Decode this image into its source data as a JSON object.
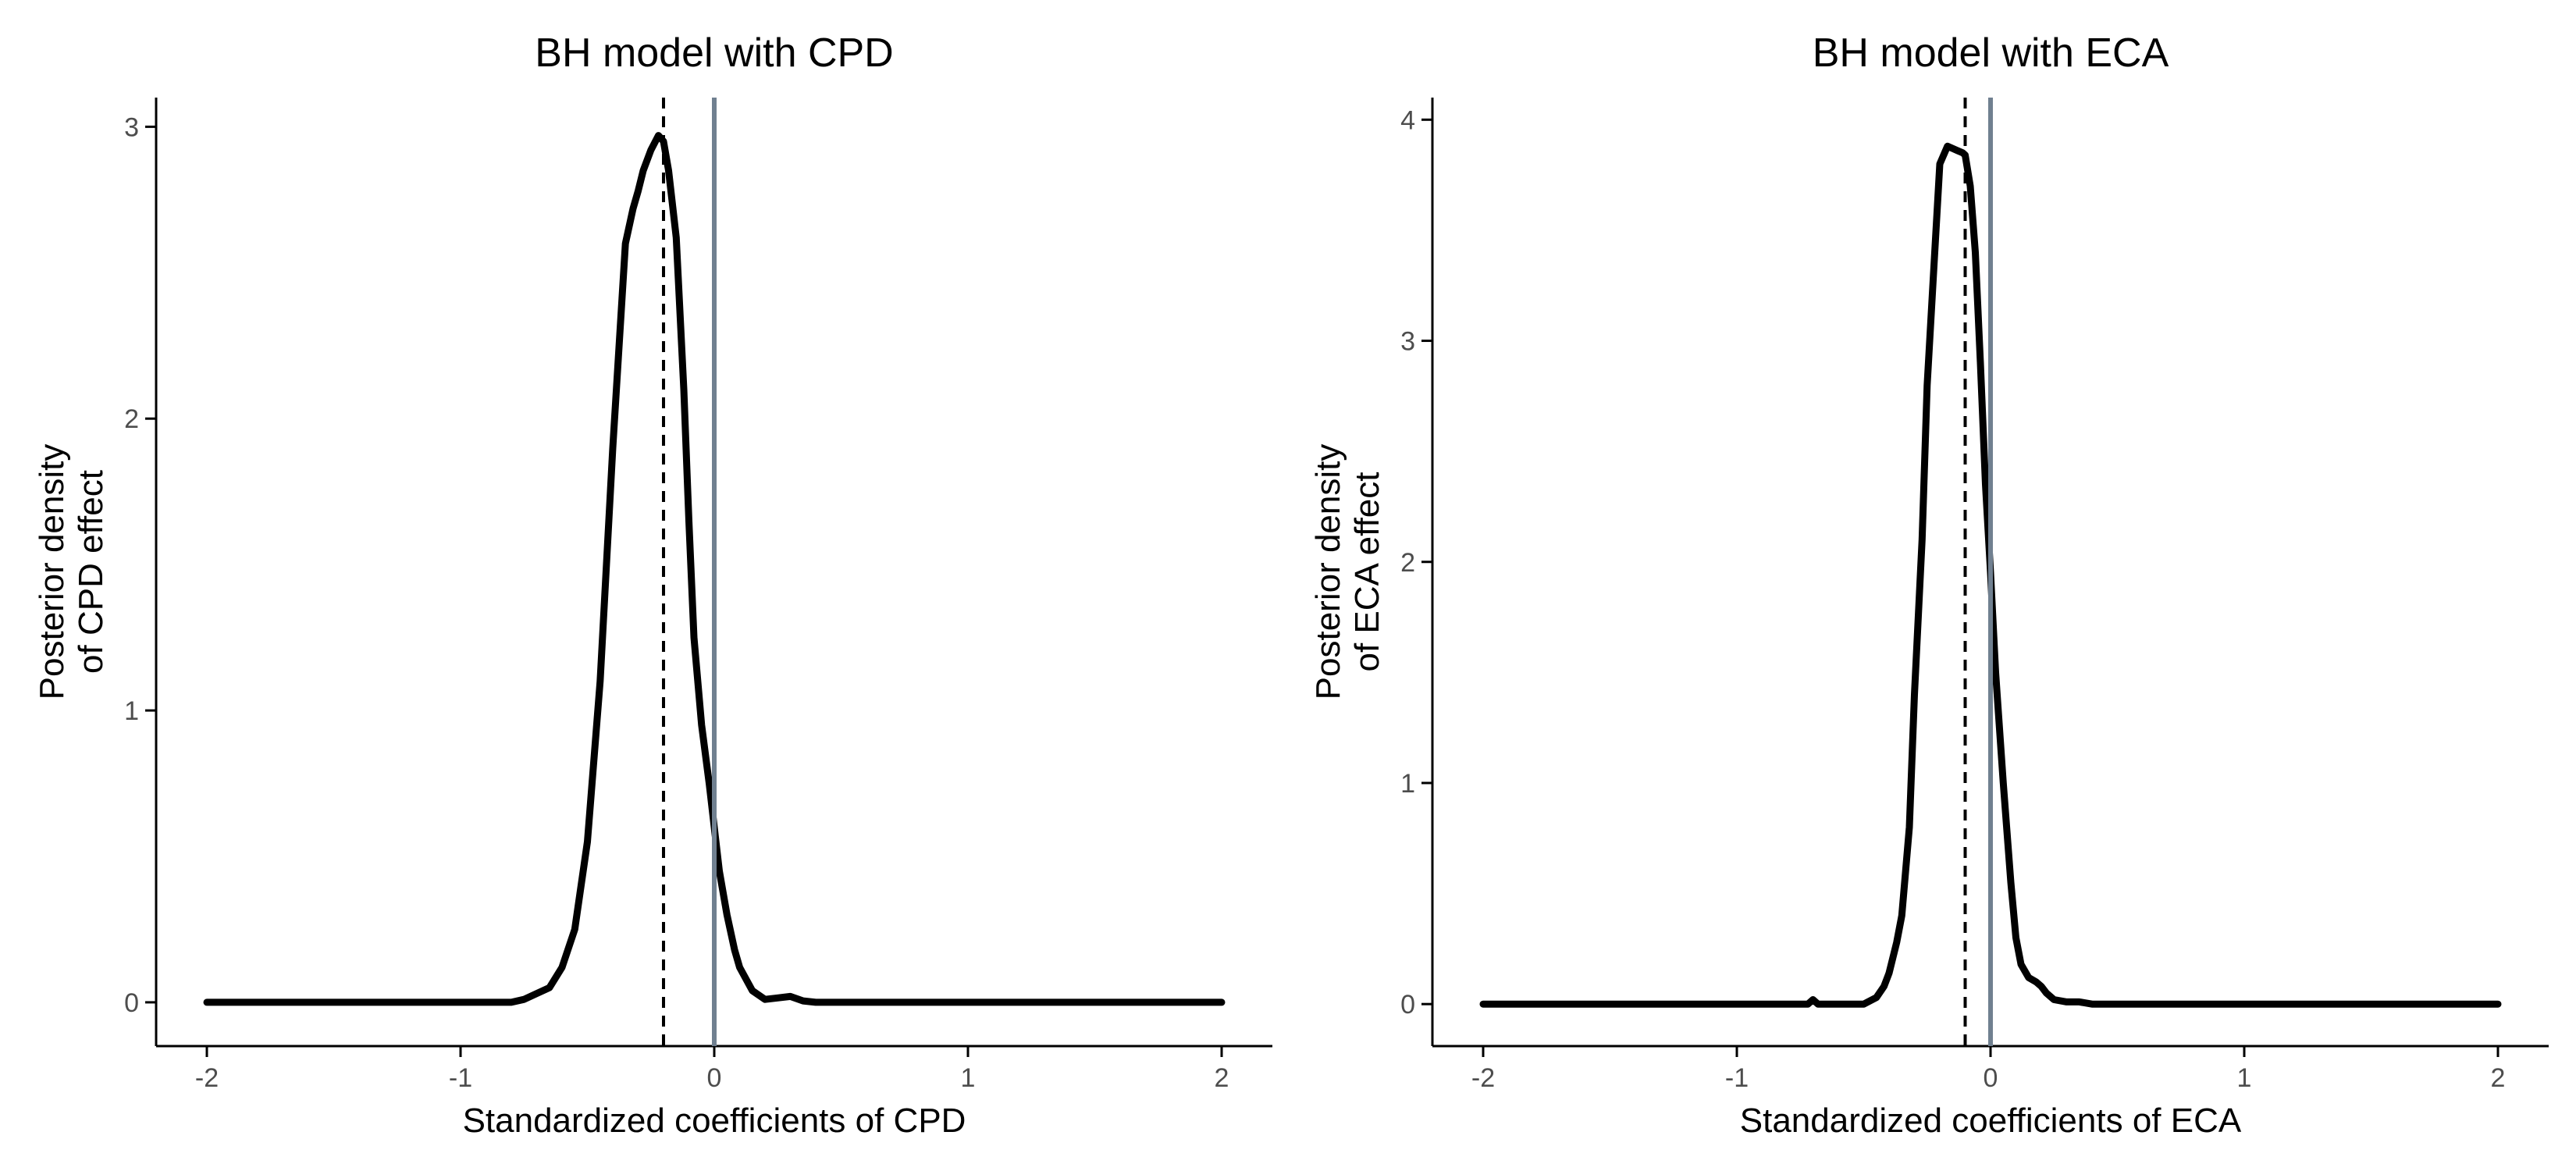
{
  "colors": {
    "density": "#000000",
    "zero_line": "#708090",
    "mean_line": "#000000",
    "axis": "#000000",
    "background": "#ffffff"
  },
  "chart_data": [
    {
      "type": "line",
      "title": "BH model with CPD",
      "xlabel": "Standardized coefficients of CPD",
      "ylabel_lines": [
        "Posterior density",
        "of CPD effect"
      ],
      "xlim": [
        -2.2,
        2.2
      ],
      "ylim": [
        -0.15,
        3.1
      ],
      "xticks": [
        -2,
        -1,
        0,
        1,
        2
      ],
      "xtick_labels": [
        "-2",
        "-1",
        "0",
        "1",
        "2"
      ],
      "yticks": [
        0,
        1,
        2,
        3
      ],
      "ytick_labels": [
        "0",
        "1",
        "2",
        "3"
      ],
      "reference_lines": [
        {
          "x": 0,
          "style": "solid",
          "color": "#708090"
        },
        {
          "x": -0.2,
          "style": "dashed",
          "color": "#000000"
        }
      ],
      "series": [
        {
          "x": [
            -2.0,
            -0.8,
            -0.75,
            -0.7,
            -0.65,
            -0.6,
            -0.55,
            -0.5,
            -0.45,
            -0.4,
            -0.35,
            -0.32,
            -0.3,
            -0.28,
            -0.25,
            -0.22,
            -0.2,
            -0.18,
            -0.15,
            -0.12,
            -0.1,
            -0.08,
            -0.05,
            -0.02,
            0.0,
            0.02,
            0.05,
            0.08,
            0.1,
            0.15,
            0.2,
            0.25,
            0.3,
            0.35,
            0.4,
            2.0
          ],
          "y": [
            0,
            0,
            0.01,
            0.03,
            0.05,
            0.12,
            0.25,
            0.55,
            1.1,
            1.9,
            2.6,
            2.72,
            2.78,
            2.85,
            2.92,
            2.97,
            2.95,
            2.85,
            2.62,
            2.1,
            1.65,
            1.25,
            0.95,
            0.75,
            0.6,
            0.45,
            0.3,
            0.18,
            0.12,
            0.04,
            0.01,
            0.015,
            0.02,
            0.005,
            0,
            0
          ]
        }
      ]
    },
    {
      "type": "line",
      "title": "BH model with ECA",
      "xlabel": "Standardized coefficients of ECA",
      "ylabel_lines": [
        "Posterior density",
        "of ECA effect"
      ],
      "xlim": [
        -2.2,
        2.2
      ],
      "ylim": [
        -0.19,
        4.1
      ],
      "xticks": [
        -2,
        -1,
        0,
        1,
        2
      ],
      "xtick_labels": [
        "-2",
        "-1",
        "0",
        "1",
        "2"
      ],
      "yticks": [
        0,
        1,
        2,
        3,
        4
      ],
      "ytick_labels": [
        "0",
        "1",
        "2",
        "3",
        "4"
      ],
      "reference_lines": [
        {
          "x": 0,
          "style": "solid",
          "color": "#708090"
        },
        {
          "x": -0.1,
          "style": "dashed",
          "color": "#000000"
        }
      ],
      "series": [
        {
          "x": [
            -2.0,
            -0.72,
            -0.7,
            -0.68,
            -0.5,
            -0.45,
            -0.42,
            -0.4,
            -0.37,
            -0.35,
            -0.32,
            -0.3,
            -0.27,
            -0.25,
            -0.22,
            -0.2,
            -0.17,
            -0.15,
            -0.13,
            -0.11,
            -0.1,
            -0.08,
            -0.06,
            -0.04,
            -0.02,
            0.0,
            0.02,
            0.05,
            0.08,
            0.1,
            0.12,
            0.15,
            0.18,
            0.2,
            0.22,
            0.25,
            0.3,
            0.35,
            0.4,
            2.0
          ],
          "y": [
            0,
            0,
            0.02,
            0,
            0,
            0.03,
            0.08,
            0.14,
            0.28,
            0.4,
            0.8,
            1.4,
            2.1,
            2.8,
            3.4,
            3.8,
            3.88,
            3.87,
            3.86,
            3.85,
            3.84,
            3.7,
            3.4,
            2.9,
            2.35,
            1.95,
            1.5,
            1.0,
            0.55,
            0.3,
            0.18,
            0.12,
            0.1,
            0.08,
            0.05,
            0.02,
            0.01,
            0.01,
            0,
            0
          ]
        }
      ]
    }
  ]
}
